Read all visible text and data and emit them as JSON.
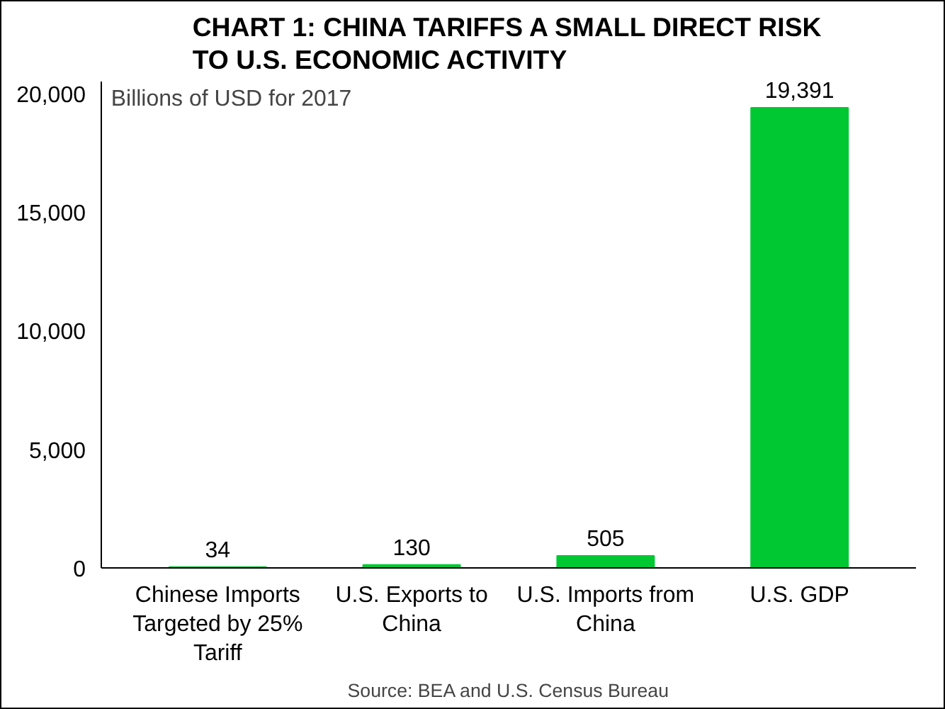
{
  "chart_data": {
    "type": "bar",
    "title": "CHART 1: CHINA TARIFFS A SMALL DIRECT RISK\nTO U.S. ECONOMIC ACTIVITY",
    "ylabel": "Billions of USD for 2017",
    "categories": [
      "Chinese Imports Targeted by 25% Tariff",
      "U.S. Exports to China",
      "U.S. Imports from China",
      "U.S. GDP"
    ],
    "values": [
      34,
      130,
      505,
      19391
    ],
    "value_labels": [
      "34",
      "130",
      "505",
      "19,391"
    ],
    "color": "#00c832",
    "ylim": [
      0,
      20500
    ],
    "yticks": [
      {
        "value": 0,
        "label": "0"
      },
      {
        "value": 5000,
        "label": "5,000"
      },
      {
        "value": 10000,
        "label": "10,000"
      },
      {
        "value": 15000,
        "label": "15,000"
      },
      {
        "value": 20000,
        "label": "20,000"
      }
    ],
    "grid": false,
    "annotations": [
      "Source: BEA and U.S. Census Bureau"
    ]
  }
}
